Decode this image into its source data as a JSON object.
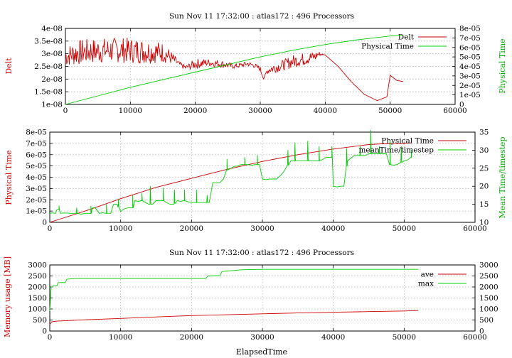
{
  "chart_data": [
    {
      "type": "line",
      "title": "Sun Nov 11 17:32:00 : atlas172 : 496 Processors",
      "xlabel": "",
      "ylabel": "Delt",
      "y2label": "Physical Time",
      "xlim": [
        0,
        60000
      ],
      "ylim": [
        1e-08,
        4e-08
      ],
      "y2lim": [
        0,
        8e-05
      ],
      "xticks": [
        "0",
        "10000",
        "20000",
        "30000",
        "40000",
        "50000",
        "60000"
      ],
      "yticks": [
        "1e-08",
        "1.5e-08",
        "2e-08",
        "2.5e-08",
        "3e-08",
        "3.5e-08",
        "4e-08"
      ],
      "y2ticks": [
        "0",
        "1e-05",
        "2e-05",
        "3e-05",
        "4e-05",
        "5e-05",
        "6e-05",
        "7e-05",
        "8e-05"
      ],
      "grid": true,
      "legend": "top-right",
      "series": [
        {
          "name": "Delt",
          "axis": "left",
          "color": "#cc0000",
          "noisy": true,
          "x": [
            0,
            2000,
            4000,
            8000,
            12000,
            15000,
            16000,
            17500,
            18500,
            20000,
            22000,
            24000,
            26000,
            28000,
            29000,
            30000,
            30500,
            31000,
            31500,
            33000,
            35000,
            37000,
            38500,
            39000,
            40000,
            42000,
            44000,
            46000,
            48000,
            49500,
            50000,
            51000,
            52000
          ],
          "y": [
            2.9e-08,
            3.05e-08,
            3.1e-08,
            3.15e-08,
            3.1e-08,
            3.05e-08,
            2.9e-08,
            2.6e-08,
            2.45e-08,
            2.6e-08,
            2.65e-08,
            2.6e-08,
            2.5e-08,
            2.6e-08,
            2.55e-08,
            2.4e-08,
            2e-08,
            2.3e-08,
            2.4e-08,
            2.5e-08,
            2.7e-08,
            2.8e-08,
            2.9e-08,
            3e-08,
            2.95e-08,
            2.5e-08,
            1.9e-08,
            1.4e-08,
            1.15e-08,
            1.3e-08,
            2.15e-08,
            1.95e-08,
            1.9e-08
          ],
          "amp": [
            4e-09,
            5e-09,
            5e-09,
            5e-09,
            5e-09,
            4e-09,
            3e-09,
            1e-09,
            1e-09,
            2e-09,
            1.5e-09,
            1.5e-09,
            1e-09,
            1e-09,
            1e-09,
            1e-09,
            0,
            1e-09,
            2e-09,
            2e-09,
            2.5e-09,
            2.5e-09,
            2e-09,
            1e-09,
            0,
            0,
            0,
            0,
            0,
            0,
            0,
            0,
            0
          ]
        },
        {
          "name": "Physical Time",
          "axis": "right",
          "color": "#00cc00",
          "noisy": false,
          "x": [
            0,
            5000,
            10000,
            15000,
            20000,
            25000,
            30000,
            35000,
            40000,
            45000,
            50000,
            52000
          ],
          "y": [
            0,
            9e-06,
            1.8e-05,
            2.6e-05,
            3.4e-05,
            4.2e-05,
            5e-05,
            5.7e-05,
            6.3e-05,
            6.8e-05,
            7.2e-05,
            7.3e-05
          ]
        }
      ]
    },
    {
      "type": "line",
      "title": "",
      "xlabel": "",
      "ylabel": "Physical Time",
      "y2label": "Mean Time/timestep",
      "xlim": [
        0,
        60000
      ],
      "ylim": [
        0,
        8e-05
      ],
      "y2lim": [
        10,
        35
      ],
      "xticks": [
        "0",
        "10000",
        "20000",
        "30000",
        "40000",
        "50000",
        "60000"
      ],
      "yticks": [
        "0",
        "1e-05",
        "2e-05",
        "3e-05",
        "4e-05",
        "5e-05",
        "6e-05",
        "7e-05",
        "8e-05"
      ],
      "y2ticks": [
        "10",
        "15",
        "20",
        "25",
        "30",
        "35"
      ],
      "grid": true,
      "legend": "top-right",
      "series": [
        {
          "name": "Physical Time",
          "axis": "left",
          "color": "#cc0000",
          "noisy": false,
          "x": [
            0,
            5000,
            10000,
            15000,
            20000,
            25000,
            30000,
            35000,
            40000,
            45000,
            48000,
            50000,
            51000
          ],
          "y": [
            0,
            1e-05,
            2.1e-05,
            3.1e-05,
            3.9e-05,
            4.7e-05,
            5.4e-05,
            6e-05,
            6.5e-05,
            6.9e-05,
            7e-05,
            7e-05,
            7.05e-05
          ],
          "amp": []
        },
        {
          "name": "meanTime/timestep",
          "axis": "right",
          "color": "#00cc00",
          "noisy": false,
          "x": [
            0,
            800,
            1000,
            1300,
            1500,
            3000,
            5000,
            5800,
            6000,
            6400,
            7000,
            8000,
            8600,
            9000,
            9500,
            10000,
            11000,
            11700,
            12000,
            13000,
            14000,
            14500,
            15000,
            16000,
            17000,
            17500,
            18000,
            19000,
            20000,
            20700,
            21000,
            21500,
            22000,
            22500,
            23000,
            24000,
            24500,
            25000,
            26000,
            27000,
            27500,
            28000,
            29000,
            29300,
            29600,
            30000,
            31000,
            31500,
            32000,
            33000,
            34000,
            34500,
            35000,
            36000,
            37000,
            37500,
            38000,
            39000,
            39500,
            39800,
            40000,
            41000,
            41500,
            42000,
            43000,
            44000,
            44500,
            45000,
            46000,
            47000,
            47500,
            48000,
            49000,
            50000,
            51000
          ],
          "y": [
            12.5,
            12.5,
            13.5,
            13.5,
            12.5,
            12.5,
            12.5,
            12.5,
            14,
            14,
            12.5,
            12.5,
            12.5,
            15,
            15,
            13,
            14,
            14,
            16,
            16,
            15,
            15,
            16,
            16,
            15,
            15,
            16,
            16,
            15.5,
            15.5,
            15.5,
            15.5,
            15.5,
            15.5,
            21,
            21,
            22,
            24.5,
            25.5,
            26,
            26,
            26,
            26,
            26,
            26,
            22,
            22,
            22,
            22,
            24,
            27,
            27,
            27,
            27,
            27,
            27,
            27,
            28,
            28,
            28,
            20,
            20,
            20,
            27,
            28.5,
            28.5,
            28.5,
            29,
            29,
            29,
            29,
            26,
            26,
            27,
            28
          ],
          "spikes": [
            [
              1300,
              14.5
            ],
            [
              3800,
              14
            ],
            [
              5800,
              14.5
            ],
            [
              8000,
              15
            ],
            [
              9700,
              16.5
            ],
            [
              11700,
              17.5
            ],
            [
              13000,
              18
            ],
            [
              14200,
              20
            ],
            [
              16000,
              19.5
            ],
            [
              17600,
              19
            ],
            [
              19000,
              19
            ],
            [
              20700,
              19
            ],
            [
              22200,
              17.5
            ],
            [
              25000,
              27.5
            ],
            [
              27500,
              28
            ],
            [
              29300,
              28.5
            ],
            [
              33600,
              30
            ],
            [
              34600,
              32
            ],
            [
              36400,
              32.5
            ],
            [
              38000,
              31
            ],
            [
              39800,
              31
            ],
            [
              41900,
              30.5
            ],
            [
              43800,
              31
            ],
            [
              45300,
              35.5
            ],
            [
              46500,
              31
            ],
            [
              48000,
              32.5
            ],
            [
              49600,
              31
            ],
            [
              51000,
              30
            ]
          ]
        }
      ]
    },
    {
      "type": "line",
      "title": "Sun Nov 11 17:32:00 : atlas172 : 496 Processors",
      "xlabel": "ElapsedTime",
      "ylabel": "Memory usage [MB]",
      "y2label": "",
      "xlim": [
        0,
        60000
      ],
      "ylim": [
        0,
        3000
      ],
      "y2lim": [
        0,
        3000
      ],
      "xticks": [
        "0",
        "10000",
        "20000",
        "30000",
        "40000",
        "50000",
        "60000"
      ],
      "yticks": [
        "0",
        "500",
        "1000",
        "1500",
        "2000",
        "2500",
        "3000"
      ],
      "y2ticks": [
        "0",
        "500",
        "1000",
        "1500",
        "2000",
        "2500",
        "3000"
      ],
      "grid": true,
      "legend": "top-right",
      "series": [
        {
          "name": "ave",
          "axis": "left",
          "color": "#cc0000",
          "noisy": false,
          "x": [
            0,
            300,
            1000,
            5000,
            10000,
            15000,
            20000,
            25000,
            30000,
            35000,
            40000,
            45000,
            50000,
            52000
          ],
          "y": [
            300,
            420,
            450,
            510,
            570,
            640,
            700,
            740,
            780,
            820,
            850,
            880,
            910,
            930
          ]
        },
        {
          "name": "max",
          "axis": "left",
          "color": "#00cc00",
          "noisy": false,
          "x": [
            0,
            100,
            200,
            300,
            500,
            1000,
            1200,
            2200,
            2400,
            3500,
            22000,
            22300,
            24000,
            24300,
            27000,
            30000,
            50000,
            52000
          ],
          "y": [
            900,
            1500,
            2000,
            2000,
            2050,
            2050,
            2200,
            2200,
            2350,
            2380,
            2380,
            2500,
            2520,
            2700,
            2780,
            2800,
            2800,
            2800
          ]
        }
      ]
    }
  ]
}
